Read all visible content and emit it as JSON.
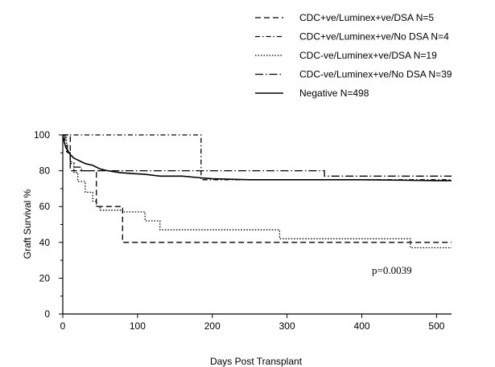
{
  "chart_data": {
    "type": "line",
    "step": true,
    "xlabel": "Days Post Transplant",
    "ylabel": "Graft Survival %",
    "xlim": [
      0,
      520
    ],
    "ylim": [
      0,
      100
    ],
    "xticks": [
      0,
      100,
      200,
      300,
      400,
      500
    ],
    "yticks": [
      0,
      20,
      40,
      60,
      80,
      100
    ],
    "annotation": "p=0.0039",
    "grid": false,
    "legend_position": "top-right",
    "series": [
      {
        "name": "CDC+ve/Luminex+ve/DSA N=5",
        "dash": "dashed",
        "color": "#000000",
        "x": [
          0,
          10,
          10,
          30,
          30,
          45,
          45,
          80,
          80,
          520
        ],
        "y": [
          100,
          100,
          80,
          80,
          80,
          80,
          60,
          60,
          40,
          40
        ]
      },
      {
        "name": "CDC+ve/Luminex+ve/No DSA N=4",
        "dash": "dash-dot",
        "color": "#000000",
        "x": [
          0,
          185,
          185,
          520
        ],
        "y": [
          100,
          100,
          75,
          75
        ]
      },
      {
        "name": "CDC-ve/Luminex+ve/DSA N=19",
        "dash": "dotted",
        "color": "#000000",
        "x": [
          0,
          5,
          5,
          10,
          10,
          15,
          15,
          20,
          20,
          30,
          30,
          40,
          40,
          45,
          45,
          50,
          50,
          80,
          80,
          110,
          110,
          130,
          130,
          290,
          290,
          465,
          465,
          520
        ],
        "y": [
          100,
          100,
          90,
          90,
          84,
          84,
          79,
          79,
          74,
          74,
          68,
          68,
          63,
          63,
          60,
          60,
          58,
          58,
          57,
          57,
          52,
          52,
          47,
          47,
          42,
          42,
          37,
          37
        ]
      },
      {
        "name": "CDC-ve/Luminex+ve/No DSA N=39",
        "dash": "long-dash-dot",
        "color": "#000000",
        "x": [
          0,
          3,
          3,
          6,
          6,
          10,
          10,
          15,
          15,
          25,
          25,
          350,
          350,
          520
        ],
        "y": [
          100,
          100,
          95,
          95,
          90,
          90,
          85,
          85,
          82,
          82,
          80,
          80,
          77,
          77
        ]
      },
      {
        "name": "Negative N=498",
        "dash": "solid",
        "color": "#000000",
        "x": [
          0,
          2,
          4,
          7,
          10,
          15,
          20,
          25,
          30,
          40,
          50,
          60,
          75,
          90,
          110,
          130,
          160,
          185,
          200,
          250,
          300,
          400,
          500,
          520
        ],
        "y": [
          100,
          96,
          93,
          91,
          89,
          87,
          86,
          85,
          84,
          83,
          81,
          80,
          79,
          78.5,
          78,
          77,
          77,
          76,
          75.5,
          75,
          75,
          75,
          74.5,
          74.5
        ]
      }
    ]
  }
}
